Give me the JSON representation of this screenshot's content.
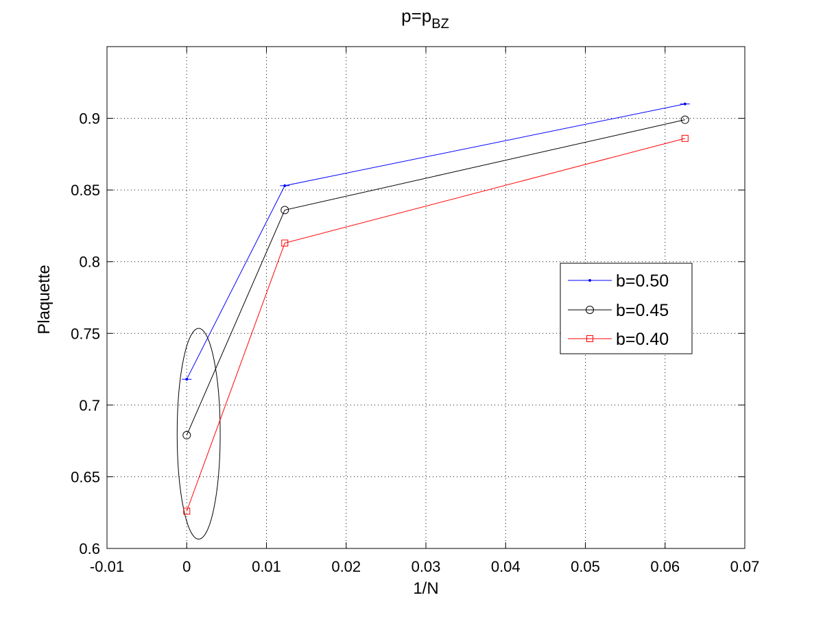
{
  "chart_data": {
    "type": "line",
    "title": {
      "main": "p=p",
      "sub": "BZ"
    },
    "xlabel": "1/N",
    "ylabel": "Plaquette",
    "xlim": [
      -0.01,
      0.07
    ],
    "ylim": [
      0.6,
      0.95
    ],
    "xticks": [
      -0.01,
      0,
      0.01,
      0.02,
      0.03,
      0.04,
      0.05,
      0.06,
      0.07
    ],
    "xtick_labels": [
      "-0.01",
      "0",
      "0.01",
      "0.02",
      "0.03",
      "0.04",
      "0.05",
      "0.06",
      "0.07"
    ],
    "yticks": [
      0.6,
      0.65,
      0.7,
      0.75,
      0.8,
      0.85,
      0.9
    ],
    "ytick_labels": [
      "0.6",
      "0.65",
      "0.7",
      "0.75",
      "0.8",
      "0.85",
      "0.9"
    ],
    "grid": true,
    "legend_position": "right",
    "series": [
      {
        "name": "b=0.50",
        "color": "#0000ff",
        "marker": "point",
        "x": [
          0,
          0.0123,
          0.0625
        ],
        "y": [
          0.718,
          0.853,
          0.91
        ]
      },
      {
        "name": "b=0.45",
        "color": "#000000",
        "marker": "circle",
        "x": [
          0,
          0.0123,
          0.0625
        ],
        "y": [
          0.679,
          0.836,
          0.899
        ]
      },
      {
        "name": "b=0.40",
        "color": "#ff0000",
        "marker": "square",
        "x": [
          0,
          0.0123,
          0.0625
        ],
        "y": [
          0.626,
          0.813,
          0.886
        ]
      }
    ],
    "annotations": [
      {
        "type": "ellipse",
        "cx": 0.0015,
        "cy": 0.68,
        "rx": 0.0027,
        "ry": 0.0735,
        "color": "#000000"
      }
    ]
  }
}
